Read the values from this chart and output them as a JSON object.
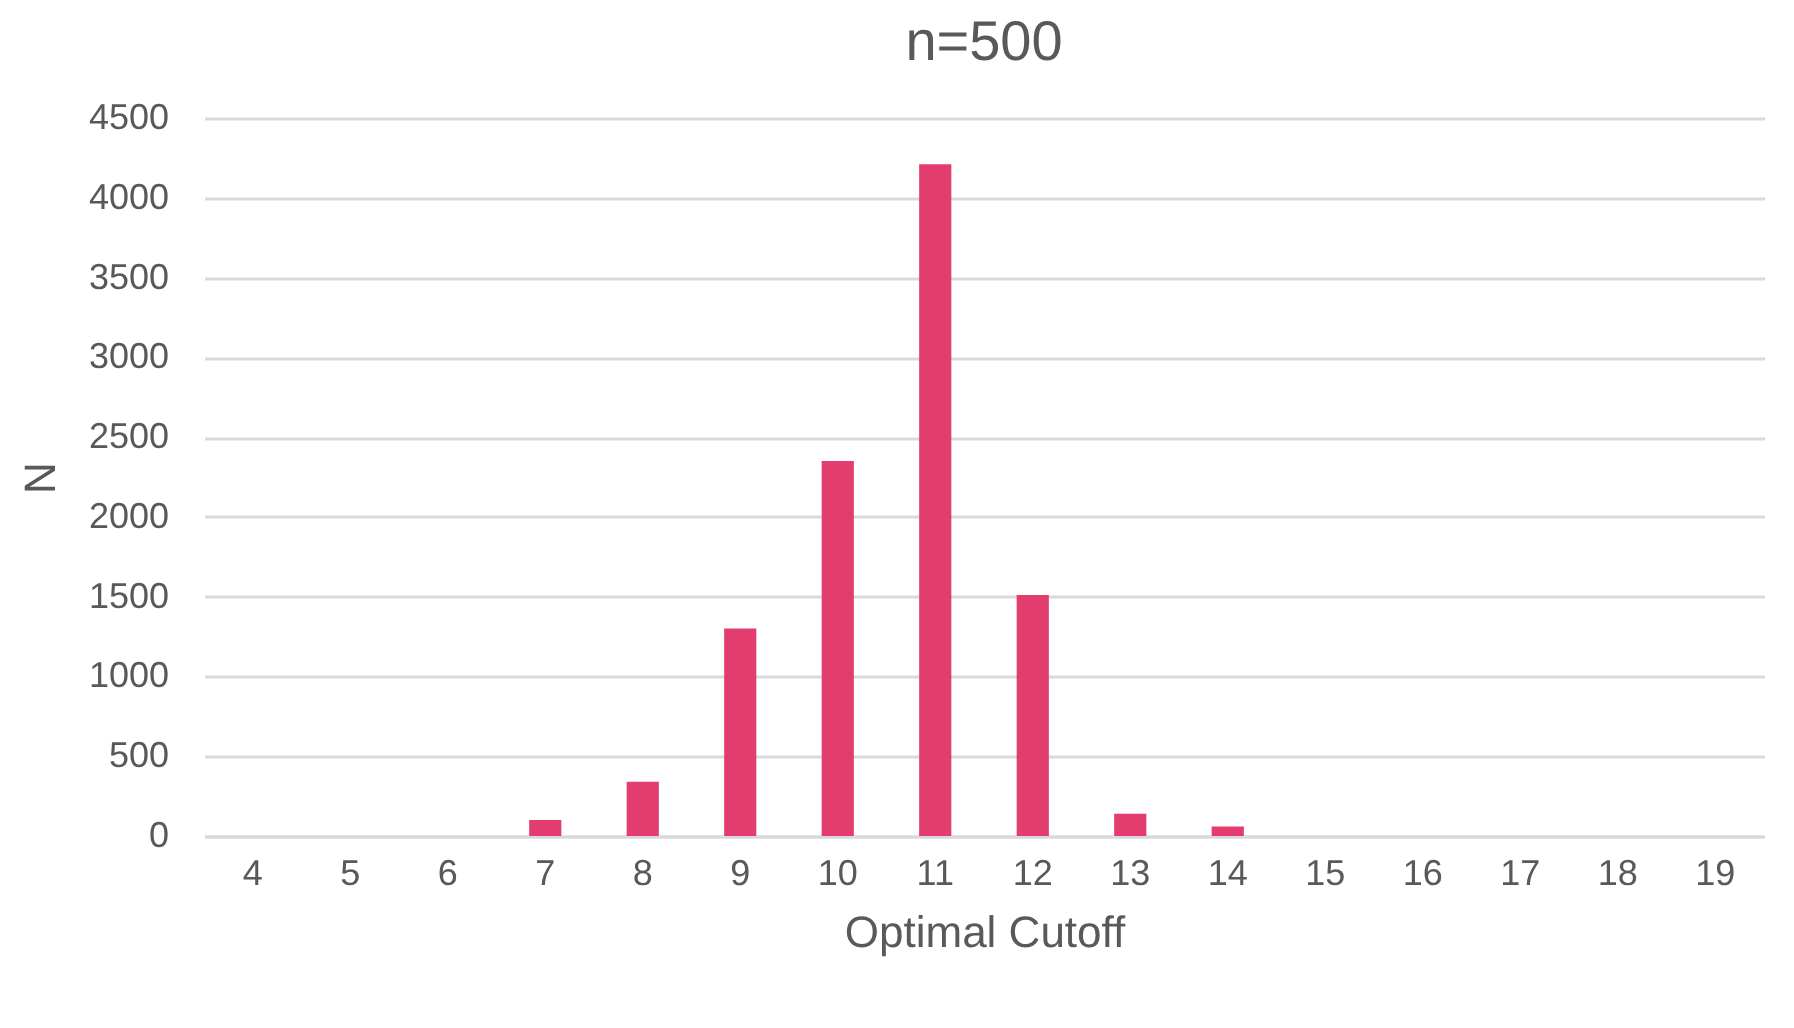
{
  "chart_data": {
    "type": "bar",
    "title": "n=500",
    "xlabel": "Optimal Cutoff",
    "ylabel": "N",
    "categories": [
      "4",
      "5",
      "6",
      "7",
      "8",
      "9",
      "10",
      "11",
      "12",
      "13",
      "14",
      "15",
      "16",
      "17",
      "18",
      "19"
    ],
    "values": [
      0,
      0,
      0,
      100,
      340,
      1300,
      2350,
      4210,
      1510,
      140,
      60,
      0,
      0,
      0,
      0,
      0
    ],
    "color": "#e33d6f",
    "ylim": [
      0,
      4500
    ],
    "yticks": [
      0,
      500,
      1000,
      1500,
      2000,
      2500,
      3000,
      3500,
      4000,
      4500
    ],
    "grid": "y"
  }
}
